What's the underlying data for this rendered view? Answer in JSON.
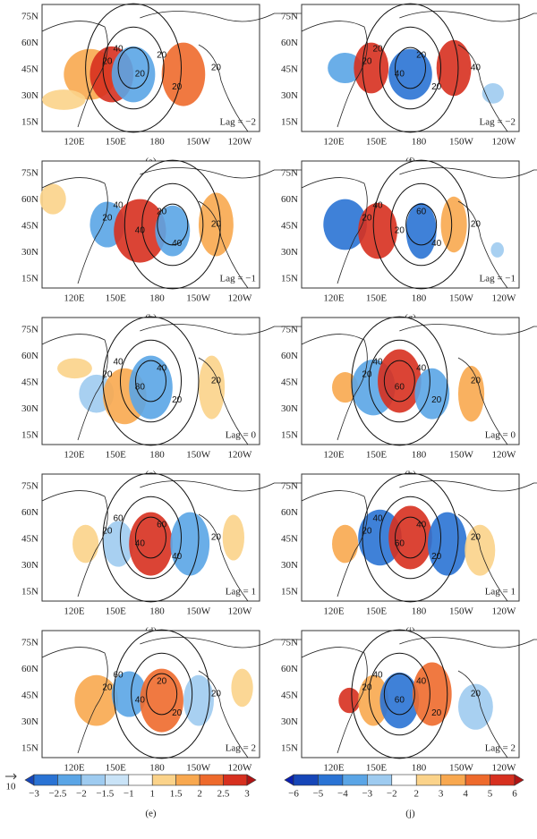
{
  "lat_ticks": [
    "75N",
    "60N",
    "45N",
    "30N",
    "15N"
  ],
  "lon_ticks": [
    "120E",
    "150E",
    "180",
    "150W",
    "120W"
  ],
  "panels": [
    {
      "label": "(a)",
      "lag": "Lag = −2",
      "contours": [
        "20",
        "40",
        "20",
        "20",
        "20",
        "20"
      ]
    },
    {
      "label": "(b)",
      "lag": "Lag = −1",
      "contours": [
        "20",
        "40",
        "40",
        "20",
        "40",
        "20"
      ]
    },
    {
      "label": "(c)",
      "lag": "Lag = 0",
      "contours": [
        "20",
        "40",
        "80",
        "40",
        "20",
        "20"
      ]
    },
    {
      "label": "(d)",
      "lag": "Lag = 1",
      "contours": [
        "20",
        "60",
        "40",
        "60",
        "40",
        "20"
      ]
    },
    {
      "label": "(e)",
      "lag": "Lag = 2",
      "contours": [
        "20",
        "60",
        "40",
        "20",
        "20",
        "20"
      ]
    },
    {
      "label": "(f)",
      "lag": "Lag = −2",
      "contours": [
        "20",
        "20",
        "40",
        "20",
        "20",
        "40"
      ]
    },
    {
      "label": "(g)",
      "lag": "Lag = −1",
      "contours": [
        "20",
        "40",
        "20",
        "60",
        "40",
        "20"
      ]
    },
    {
      "label": "(h)",
      "lag": "Lag = 0",
      "contours": [
        "20",
        "40",
        "60",
        "40",
        "20",
        "20"
      ]
    },
    {
      "label": "(i)",
      "lag": "Lag = 1",
      "contours": [
        "20",
        "40",
        "60",
        "40",
        "20",
        "20"
      ]
    },
    {
      "label": "(j)",
      "lag": "Lag = 2",
      "contours": [
        "20",
        "40",
        "60",
        "40",
        "20",
        "20"
      ]
    }
  ],
  "vector_ref": "10",
  "colorbars": [
    {
      "ticks": [
        {
          "value": -3,
          "label": "−3"
        },
        {
          "value": -2.5,
          "label": "−2.5"
        },
        {
          "value": -2,
          "label": "−2"
        },
        {
          "value": -1.5,
          "label": "−1.5"
        },
        {
          "value": -1,
          "label": "−1"
        },
        1,
        1.5,
        2,
        2.5,
        3
      ]
    },
    {
      "ticks": [
        {
          "value": -6,
          "label": "−6"
        },
        {
          "value": -5,
          "label": "−5"
        },
        {
          "value": -4,
          "label": "−4"
        },
        {
          "value": -3,
          "label": "−3"
        },
        {
          "value": -2,
          "label": "−2"
        },
        2,
        3,
        4,
        5,
        6
      ]
    }
  ]
}
